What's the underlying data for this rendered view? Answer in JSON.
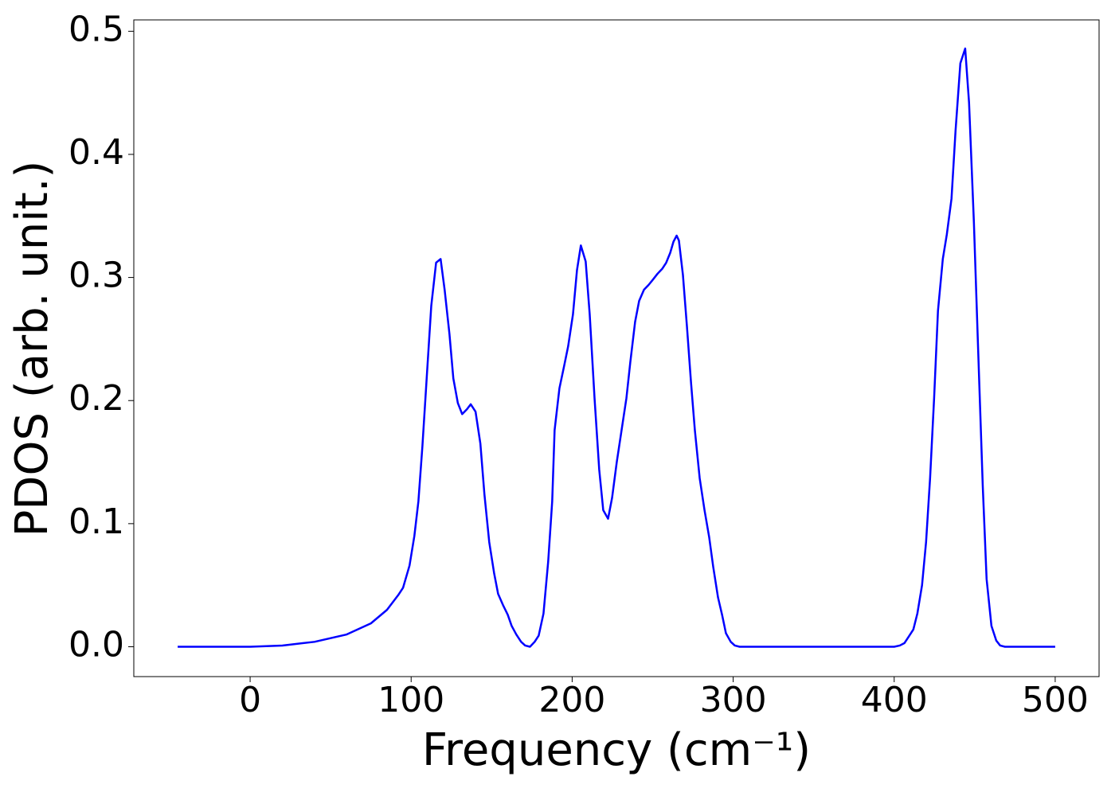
{
  "chart_data": {
    "type": "line",
    "xlabel": "Frequency (cm⁻¹)",
    "ylabel": "PDOS (arb. unit.)",
    "xlim": [
      -72.25,
      527.25
    ],
    "ylim": [
      -0.02425,
      0.50925
    ],
    "xticks": [
      0,
      100,
      200,
      300,
      400,
      500
    ],
    "yticks": [
      {
        "value": 0,
        "label": "0.0"
      },
      0.1,
      0.2,
      0.3,
      0.4,
      0.5
    ],
    "grid": false,
    "x": [
      -45,
      -20,
      0,
      20,
      40,
      60,
      75,
      85,
      92,
      95,
      99,
      102,
      104.5,
      107,
      109.5,
      112.5,
      115.5,
      118.3,
      120.8,
      123.8,
      126.2,
      129,
      131.7,
      134.7,
      137,
      140,
      143,
      145.5,
      148.5,
      151.5,
      154,
      157,
      160,
      162.4,
      165.3,
      168.3,
      170.8,
      173.8,
      176.7,
      179.2,
      182.2,
      185.1,
      187.6,
      189.1,
      192.1,
      195,
      197.5,
      200.5,
      203,
      205.4,
      208.4,
      210.9,
      213.9,
      216.8,
      219.3,
      222.3,
      224.8,
      227.7,
      230.7,
      233.7,
      236.1,
      239.1,
      241.6,
      244.6,
      247.5,
      250,
      253,
      255.9,
      258.4,
      260.9,
      262.9,
      264.9,
      266.3,
      268.8,
      271.3,
      273.8,
      276.2,
      279.2,
      282.2,
      285.1,
      287.6,
      290.6,
      293.1,
      295.5,
      298.5,
      301,
      304,
      350,
      400,
      403.5,
      406.4,
      408.9,
      411.9,
      414.4,
      417.3,
      419.8,
      422.3,
      424.8,
      427.2,
      430.2,
      432.7,
      435.6,
      438.1,
      441.1,
      444.1,
      446.5,
      449.5,
      452,
      455,
      457.4,
      460.4,
      463.4,
      465.8,
      468.8,
      500
    ],
    "series": [
      {
        "name": "PDOS",
        "color": "#0000ff",
        "values": [
          0,
          0,
          0,
          0.001,
          0.004,
          0.01,
          0.019,
          0.03,
          0.042,
          0.048,
          0.066,
          0.09,
          0.118,
          0.163,
          0.215,
          0.277,
          0.312,
          0.315,
          0.29,
          0.254,
          0.218,
          0.198,
          0.189,
          0.193,
          0.197,
          0.191,
          0.165,
          0.124,
          0.085,
          0.06,
          0.043,
          0.034,
          0.026,
          0.017,
          0.01,
          0.004,
          0.001,
          0,
          0.004,
          0.009,
          0.027,
          0.069,
          0.118,
          0.176,
          0.21,
          0.228,
          0.244,
          0.27,
          0.306,
          0.326,
          0.313,
          0.27,
          0.202,
          0.144,
          0.111,
          0.104,
          0.121,
          0.15,
          0.176,
          0.202,
          0.231,
          0.264,
          0.281,
          0.29,
          0.294,
          0.298,
          0.303,
          0.307,
          0.312,
          0.32,
          0.329,
          0.334,
          0.33,
          0.302,
          0.26,
          0.215,
          0.176,
          0.137,
          0.111,
          0.089,
          0.065,
          0.04,
          0.026,
          0.011,
          0.004,
          0.001,
          0,
          0,
          0,
          0.001,
          0.003,
          0.008,
          0.014,
          0.027,
          0.05,
          0.085,
          0.137,
          0.202,
          0.273,
          0.315,
          0.335,
          0.364,
          0.419,
          0.474,
          0.486,
          0.442,
          0.345,
          0.247,
          0.131,
          0.055,
          0.017,
          0.005,
          0.001,
          0,
          0
        ]
      }
    ]
  }
}
